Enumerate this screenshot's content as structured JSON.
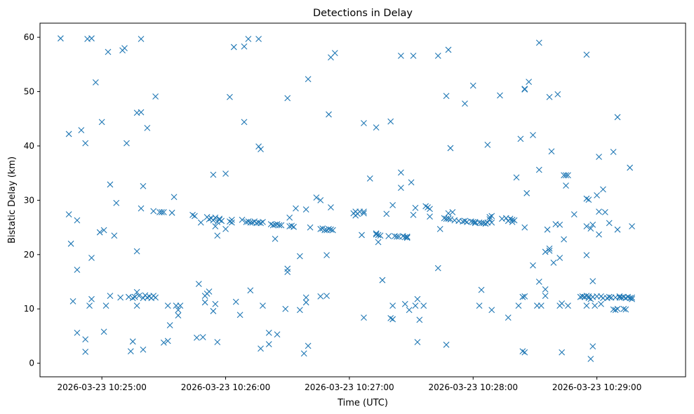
{
  "chart_data": {
    "type": "scatter",
    "title": "Detections in Delay",
    "xlabel": "Time (UTC)",
    "ylabel": "Bistatic Delay (km)",
    "marker": "x",
    "color": "#1f77b4",
    "grid": false,
    "xlim": [
      "2026-03-23 10:24:30",
      "2026-03-23 10:29:43"
    ],
    "ylim": [
      -2.5,
      62.6
    ],
    "xticks": [
      "2026-03-23 10:25:00",
      "2026-03-23 10:26:00",
      "2026-03-23 10:27:00",
      "2026-03-23 10:28:00",
      "2026-03-23 10:29:00"
    ],
    "yticks": [
      0,
      10,
      20,
      30,
      40,
      50,
      60
    ],
    "points": [
      [
        "10:24:40",
        59.8
      ],
      [
        "10:24:44",
        42.2
      ],
      [
        "10:24:44",
        27.4
      ],
      [
        "10:24:45",
        22.0
      ],
      [
        "10:24:46",
        11.4
      ],
      [
        "10:24:48",
        26.3
      ],
      [
        "10:24:48",
        5.6
      ],
      [
        "10:24:48",
        17.2
      ],
      [
        "10:24:50",
        42.9
      ],
      [
        "10:24:52",
        40.5
      ],
      [
        "10:24:52",
        4.4
      ],
      [
        "10:24:52",
        2.1
      ],
      [
        "10:24:53",
        59.7
      ],
      [
        "10:24:54",
        10.6
      ],
      [
        "10:24:55",
        59.8
      ],
      [
        "10:24:55",
        11.8
      ],
      [
        "10:24:55",
        19.4
      ],
      [
        "10:24:57",
        51.7
      ],
      [
        "10:24:59",
        24.1
      ],
      [
        "10:25:00",
        44.4
      ],
      [
        "10:25:01",
        24.5
      ],
      [
        "10:25:01",
        5.8
      ],
      [
        "10:25:02",
        10.6
      ],
      [
        "10:25:03",
        57.3
      ],
      [
        "10:25:04",
        32.9
      ],
      [
        "10:25:04",
        12.4
      ],
      [
        "10:25:06",
        23.5
      ],
      [
        "10:25:07",
        29.5
      ],
      [
        "10:25:09",
        12.1
      ],
      [
        "10:25:10",
        57.6
      ],
      [
        "10:25:11",
        58.0
      ],
      [
        "10:25:12",
        40.5
      ],
      [
        "10:25:13",
        12.2
      ],
      [
        "10:25:14",
        2.2
      ],
      [
        "10:25:15",
        4.0
      ],
      [
        "10:25:15",
        12.0
      ],
      [
        "10:25:16",
        12.2
      ],
      [
        "10:25:17",
        20.6
      ],
      [
        "10:25:17",
        46.1
      ],
      [
        "10:25:17",
        10.6
      ],
      [
        "10:25:17",
        13.1
      ],
      [
        "10:25:18",
        12.4
      ],
      [
        "10:25:19",
        59.7
      ],
      [
        "10:25:19",
        28.5
      ],
      [
        "10:25:19",
        46.2
      ],
      [
        "10:25:20",
        32.6
      ],
      [
        "10:25:20",
        2.5
      ],
      [
        "10:25:20",
        12.0
      ],
      [
        "10:25:21",
        12.5
      ],
      [
        "10:25:22",
        43.3
      ],
      [
        "10:25:22",
        12.1
      ],
      [
        "10:25:23",
        12.3
      ],
      [
        "10:25:24",
        12.0
      ],
      [
        "10:25:25",
        28.0
      ],
      [
        "10:25:25",
        12.4
      ],
      [
        "10:25:26",
        49.1
      ],
      [
        "10:25:26",
        12.1
      ],
      [
        "10:25:28",
        27.8
      ],
      [
        "10:25:29",
        27.8
      ],
      [
        "10:25:30",
        27.8
      ],
      [
        "10:25:30",
        3.8
      ],
      [
        "10:25:32",
        4.1
      ],
      [
        "10:25:32",
        10.6
      ],
      [
        "10:25:33",
        7.0
      ],
      [
        "10:25:34",
        27.7
      ],
      [
        "10:25:35",
        30.6
      ],
      [
        "10:25:36",
        10.6
      ],
      [
        "10:25:37",
        8.8
      ],
      [
        "10:25:37",
        9.8
      ],
      [
        "10:25:38",
        10.6
      ],
      [
        "10:25:44",
        27.3
      ],
      [
        "10:25:45",
        27.1
      ],
      [
        "10:25:46",
        4.7
      ],
      [
        "10:25:47",
        14.6
      ],
      [
        "10:25:48",
        25.9
      ],
      [
        "10:25:49",
        4.8
      ],
      [
        "10:25:50",
        11.2
      ],
      [
        "10:25:50",
        12.4
      ],
      [
        "10:25:51",
        26.9
      ],
      [
        "10:25:51",
        12.8
      ],
      [
        "10:25:52",
        13.2
      ],
      [
        "10:25:52",
        26.5
      ],
      [
        "10:25:53",
        26.7
      ],
      [
        "10:25:54",
        34.7
      ],
      [
        "10:25:54",
        9.6
      ],
      [
        "10:25:54",
        26.3
      ],
      [
        "10:25:55",
        26.8
      ],
      [
        "10:25:55",
        25.2
      ],
      [
        "10:25:55",
        10.9
      ],
      [
        "10:25:56",
        3.9
      ],
      [
        "10:25:56",
        23.5
      ],
      [
        "10:25:56",
        26.0
      ],
      [
        "10:25:57",
        26.4
      ],
      [
        "10:25:57",
        26.6
      ],
      [
        "10:25:58",
        26.2
      ],
      [
        "10:26:00",
        34.9
      ],
      [
        "10:26:00",
        24.7
      ],
      [
        "10:26:02",
        49.0
      ],
      [
        "10:26:02",
        26.1
      ],
      [
        "10:26:03",
        26.4
      ],
      [
        "10:26:03",
        25.9
      ],
      [
        "10:26:04",
        58.2
      ],
      [
        "10:26:05",
        11.3
      ],
      [
        "10:26:07",
        8.9
      ],
      [
        "10:26:08",
        26.4
      ],
      [
        "10:26:09",
        58.3
      ],
      [
        "10:26:09",
        44.4
      ],
      [
        "10:26:10",
        26.0
      ],
      [
        "10:26:11",
        26.1
      ],
      [
        "10:26:11",
        59.7
      ],
      [
        "10:26:12",
        13.4
      ],
      [
        "10:26:12",
        25.9
      ],
      [
        "10:26:13",
        25.9
      ],
      [
        "10:26:14",
        26.1
      ],
      [
        "10:26:15",
        25.8
      ],
      [
        "10:26:16",
        59.7
      ],
      [
        "10:26:16",
        39.9
      ],
      [
        "10:26:16",
        25.9
      ],
      [
        "10:26:17",
        39.4
      ],
      [
        "10:26:17",
        2.7
      ],
      [
        "10:26:17",
        25.8
      ],
      [
        "10:26:18",
        10.6
      ],
      [
        "10:26:18",
        26.0
      ],
      [
        "10:26:21",
        5.6
      ],
      [
        "10:26:21",
        3.5
      ],
      [
        "10:26:22",
        25.6
      ],
      [
        "10:26:23",
        25.4
      ],
      [
        "10:26:24",
        22.9
      ],
      [
        "10:26:24",
        25.5
      ],
      [
        "10:26:25",
        5.3
      ],
      [
        "10:26:25",
        25.6
      ],
      [
        "10:26:26",
        25.4
      ],
      [
        "10:26:27",
        25.4
      ],
      [
        "10:26:29",
        10.0
      ],
      [
        "10:26:30",
        48.8
      ],
      [
        "10:26:30",
        17.4
      ],
      [
        "10:26:30",
        16.8
      ],
      [
        "10:26:31",
        26.8
      ],
      [
        "10:26:31",
        25.2
      ],
      [
        "10:26:32",
        25.3
      ],
      [
        "10:26:33",
        25.1
      ],
      [
        "10:26:34",
        28.5
      ],
      [
        "10:26:36",
        19.7
      ],
      [
        "10:26:36",
        9.8
      ],
      [
        "10:26:38",
        1.8
      ],
      [
        "10:26:39",
        12.1
      ],
      [
        "10:26:39",
        11.2
      ],
      [
        "10:26:39",
        28.3
      ],
      [
        "10:26:40",
        3.2
      ],
      [
        "10:26:40",
        52.3
      ],
      [
        "10:26:41",
        25.0
      ],
      [
        "10:26:44",
        30.5
      ],
      [
        "10:26:46",
        30.0
      ],
      [
        "10:26:46",
        12.3
      ],
      [
        "10:26:46",
        24.7
      ],
      [
        "10:26:47",
        24.8
      ],
      [
        "10:26:48",
        24.5
      ],
      [
        "10:26:49",
        12.4
      ],
      [
        "10:26:49",
        19.9
      ],
      [
        "10:26:49",
        24.5
      ],
      [
        "10:26:50",
        45.8
      ],
      [
        "10:26:50",
        24.7
      ],
      [
        "10:26:51",
        56.3
      ],
      [
        "10:26:51",
        28.7
      ],
      [
        "10:26:51",
        24.6
      ],
      [
        "10:26:52",
        24.5
      ],
      [
        "10:26:53",
        57.1
      ],
      [
        "10:27:02",
        27.6
      ],
      [
        "10:27:03",
        27.2
      ],
      [
        "10:27:03",
        27.9
      ],
      [
        "10:27:04",
        27.5
      ],
      [
        "10:27:05",
        27.9
      ],
      [
        "10:27:06",
        23.6
      ],
      [
        "10:27:07",
        8.4
      ],
      [
        "10:27:07",
        27.6
      ],
      [
        "10:27:07",
        27.9
      ],
      [
        "10:27:07",
        44.2
      ],
      [
        "10:27:10",
        34.0
      ],
      [
        "10:27:13",
        43.4
      ],
      [
        "10:27:13",
        23.7
      ],
      [
        "10:27:13",
        23.9
      ],
      [
        "10:27:14",
        22.3
      ],
      [
        "10:27:14",
        23.6
      ],
      [
        "10:27:15",
        23.5
      ],
      [
        "10:27:16",
        15.3
      ],
      [
        "10:27:18",
        27.5
      ],
      [
        "10:27:19",
        23.4
      ],
      [
        "10:27:20",
        44.5
      ],
      [
        "10:27:20",
        8.3
      ],
      [
        "10:27:21",
        29.1
      ],
      [
        "10:27:21",
        10.6
      ],
      [
        "10:27:21",
        8.1
      ],
      [
        "10:27:22",
        23.4
      ],
      [
        "10:27:23",
        23.3
      ],
      [
        "10:27:24",
        23.3
      ],
      [
        "10:27:25",
        56.6
      ],
      [
        "10:27:25",
        35.1
      ],
      [
        "10:27:25",
        32.3
      ],
      [
        "10:27:26",
        23.4
      ],
      [
        "10:27:27",
        23.2
      ],
      [
        "10:27:27",
        10.9
      ],
      [
        "10:27:28",
        23.2
      ],
      [
        "10:27:28",
        23.1
      ],
      [
        "10:27:28",
        23.3
      ],
      [
        "10:27:29",
        9.8
      ],
      [
        "10:27:30",
        33.3
      ],
      [
        "10:27:31",
        27.3
      ],
      [
        "10:27:31",
        56.6
      ],
      [
        "10:27:32",
        28.6
      ],
      [
        "10:27:32",
        10.6
      ],
      [
        "10:27:33",
        3.9
      ],
      [
        "10:27:33",
        11.8
      ],
      [
        "10:27:34",
        8.0
      ],
      [
        "10:27:36",
        10.6
      ],
      [
        "10:27:37",
        28.9
      ],
      [
        "10:27:38",
        28.7
      ],
      [
        "10:27:39",
        27.0
      ],
      [
        "10:27:39",
        28.4
      ],
      [
        "10:27:43",
        17.5
      ],
      [
        "10:27:43",
        56.6
      ],
      [
        "10:27:44",
        24.7
      ],
      [
        "10:27:46",
        26.7
      ],
      [
        "10:27:47",
        26.6
      ],
      [
        "10:27:47",
        3.4
      ],
      [
        "10:27:47",
        49.2
      ],
      [
        "10:27:48",
        57.7
      ],
      [
        "10:27:48",
        26.6
      ],
      [
        "10:27:48",
        27.6
      ],
      [
        "10:27:49",
        39.6
      ],
      [
        "10:27:49",
        26.5
      ],
      [
        "10:27:50",
        27.8
      ],
      [
        "10:27:51",
        26.3
      ],
      [
        "10:27:53",
        26.2
      ],
      [
        "10:27:55",
        26.1
      ],
      [
        "10:27:56",
        47.8
      ],
      [
        "10:27:56",
        26.2
      ],
      [
        "10:27:57",
        26.0
      ],
      [
        "10:27:59",
        26.1
      ],
      [
        "10:28:00",
        51.1
      ],
      [
        "10:28:00",
        26.0
      ],
      [
        "10:28:01",
        26.0
      ],
      [
        "10:28:01",
        25.8
      ],
      [
        "10:28:03",
        10.6
      ],
      [
        "10:28:03",
        25.9
      ],
      [
        "10:28:04",
        13.5
      ],
      [
        "10:28:04",
        25.8
      ],
      [
        "10:28:05",
        25.8
      ],
      [
        "10:28:06",
        25.7
      ],
      [
        "10:28:07",
        40.2
      ],
      [
        "10:28:07",
        25.9
      ],
      [
        "10:28:08",
        26.5
      ],
      [
        "10:28:08",
        26.9
      ],
      [
        "10:28:09",
        27.1
      ],
      [
        "10:28:09",
        9.8
      ],
      [
        "10:28:09",
        25.9
      ],
      [
        "10:28:13",
        49.3
      ],
      [
        "10:28:14",
        26.6
      ],
      [
        "10:28:16",
        26.7
      ],
      [
        "10:28:17",
        8.4
      ],
      [
        "10:28:17",
        26.2
      ],
      [
        "10:28:18",
        26.6
      ],
      [
        "10:28:19",
        26.4
      ],
      [
        "10:28:19",
        26.0
      ],
      [
        "10:28:20",
        26.3
      ],
      [
        "10:28:21",
        34.2
      ],
      [
        "10:28:22",
        10.6
      ],
      [
        "10:28:23",
        41.3
      ],
      [
        "10:28:24",
        2.2
      ],
      [
        "10:28:24",
        12.2
      ],
      [
        "10:28:25",
        2.0
      ],
      [
        "10:28:25",
        50.4
      ],
      [
        "10:28:25",
        50.5
      ],
      [
        "10:28:25",
        12.3
      ],
      [
        "10:28:25",
        25.0
      ],
      [
        "10:28:26",
        31.3
      ],
      [
        "10:28:27",
        51.8
      ],
      [
        "10:28:29",
        42.0
      ],
      [
        "10:28:29",
        18.0
      ],
      [
        "10:28:31",
        10.6
      ],
      [
        "10:28:32",
        35.6
      ],
      [
        "10:28:32",
        15.0
      ],
      [
        "10:28:32",
        59.0
      ],
      [
        "10:28:33",
        10.6
      ],
      [
        "10:28:35",
        13.6
      ],
      [
        "10:28:35",
        12.4
      ],
      [
        "10:28:35",
        20.5
      ],
      [
        "10:28:36",
        24.6
      ],
      [
        "10:28:37",
        21.1
      ],
      [
        "10:28:37",
        20.7
      ],
      [
        "10:28:37",
        49.0
      ],
      [
        "10:28:38",
        39.0
      ],
      [
        "10:28:39",
        18.5
      ],
      [
        "10:28:40",
        25.6
      ],
      [
        "10:28:41",
        49.5
      ],
      [
        "10:28:42",
        10.6
      ],
      [
        "10:28:42",
        25.5
      ],
      [
        "10:28:42",
        19.4
      ],
      [
        "10:28:43",
        2.0
      ],
      [
        "10:28:43",
        11.0
      ],
      [
        "10:28:44",
        22.8
      ],
      [
        "10:28:44",
        34.6
      ],
      [
        "10:28:45",
        34.6
      ],
      [
        "10:28:45",
        32.7
      ],
      [
        "10:28:46",
        34.6
      ],
      [
        "10:28:46",
        10.6
      ],
      [
        "10:28:49",
        27.4
      ],
      [
        "10:28:52",
        12.2
      ],
      [
        "10:28:53",
        12.3
      ],
      [
        "10:28:54",
        12.2
      ],
      [
        "10:28:55",
        56.8
      ],
      [
        "10:28:55",
        30.3
      ],
      [
        "10:28:55",
        19.9
      ],
      [
        "10:28:55",
        25.2
      ],
      [
        "10:28:55",
        12.4
      ],
      [
        "10:28:55",
        10.6
      ],
      [
        "10:28:56",
        30.1
      ],
      [
        "10:28:56",
        12.0
      ],
      [
        "10:28:56",
        12.3
      ],
      [
        "10:28:57",
        24.8
      ],
      [
        "10:28:57",
        0.8
      ],
      [
        "10:28:57",
        11.8
      ],
      [
        "10:28:58",
        3.1
      ],
      [
        "10:28:58",
        15.1
      ],
      [
        "10:28:58",
        12.2
      ],
      [
        "10:28:58",
        25.5
      ],
      [
        "10:28:59",
        10.6
      ],
      [
        "10:29:00",
        30.9
      ],
      [
        "10:29:00",
        12.3
      ],
      [
        "10:29:01",
        38.0
      ],
      [
        "10:29:01",
        27.9
      ],
      [
        "10:29:01",
        23.7
      ],
      [
        "10:29:02",
        10.9
      ],
      [
        "10:29:02",
        12.3
      ],
      [
        "10:29:03",
        12.0
      ],
      [
        "10:29:03",
        32.0
      ],
      [
        "10:29:04",
        27.8
      ],
      [
        "10:29:05",
        12.0
      ],
      [
        "10:29:06",
        12.2
      ],
      [
        "10:29:06",
        25.8
      ],
      [
        "10:29:07",
        12.1
      ],
      [
        "10:29:08",
        38.9
      ],
      [
        "10:29:08",
        9.9
      ],
      [
        "10:29:09",
        12.1
      ],
      [
        "10:29:09",
        9.8
      ],
      [
        "10:29:10",
        45.3
      ],
      [
        "10:29:10",
        10.0
      ],
      [
        "10:29:10",
        24.6
      ],
      [
        "10:29:11",
        12.1
      ],
      [
        "10:29:11",
        12.3
      ],
      [
        "10:29:12",
        12.1
      ],
      [
        "10:29:13",
        12.2
      ],
      [
        "10:29:13",
        10.0
      ],
      [
        "10:29:14",
        12.0
      ],
      [
        "10:29:14",
        9.9
      ],
      [
        "10:29:15",
        12.2
      ],
      [
        "10:29:16",
        36.0
      ],
      [
        "10:29:16",
        12.0
      ],
      [
        "10:29:17",
        12.1
      ],
      [
        "10:29:17",
        25.2
      ],
      [
        "10:29:17",
        11.8
      ]
    ]
  }
}
